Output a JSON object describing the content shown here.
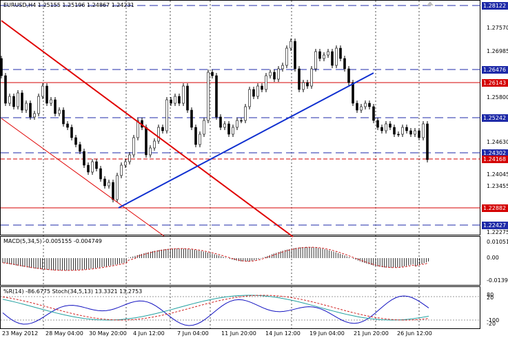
{
  "main_header": "EURUSD,H4  1.25155 1.25196 1.24867 1.24231",
  "macd_header": "MACD(5,34,5) -0.005155 -0.004749",
  "wpr_header": "%R(14) -86.6775  Stoch(34,5,13) 13.3321 13.2753",
  "price_axis": [
    "1.27570",
    "1.26985",
    "1.25800",
    "1.24630",
    "1.24045",
    "1.23455",
    "1.22275"
  ],
  "price_levels": [
    {
      "label": "1.28122",
      "color": "#1e2aa8"
    },
    {
      "label": "1.26476",
      "color": "#1e2aa8"
    },
    {
      "label": "1.26143",
      "color": "#d40000"
    },
    {
      "label": "1.25242",
      "color": "#1e2aa8"
    },
    {
      "label": "1.24302",
      "color": "#1e2aa8"
    },
    {
      "label": "1.24168",
      "color": "#d40000"
    },
    {
      "label": "1.22882",
      "color": "#d40000"
    },
    {
      "label": "1.22427",
      "color": "#1e2aa8"
    }
  ],
  "macd_axis": [
    "0.010515",
    "0.00",
    "-0.013961"
  ],
  "wpr_axis": [
    "80",
    "20",
    "-100",
    "-20"
  ],
  "time_axis": [
    "23 May 2012",
    "28 May 04:00",
    "30 May 20:00",
    "4 Jun 12:00",
    "7 Jun 04:00",
    "11 Jun 20:00",
    "14 Jun 12:00",
    "19 Jun 04:00",
    "21 Jun 20:00",
    "26 Jun 12:00"
  ],
  "colors": {
    "blue_level": "#1e2aa8",
    "red_level": "#d40000",
    "trend_red": "#e00000",
    "trend_blue": "#1030d0",
    "macd_signal": "#d02020"
  }
}
